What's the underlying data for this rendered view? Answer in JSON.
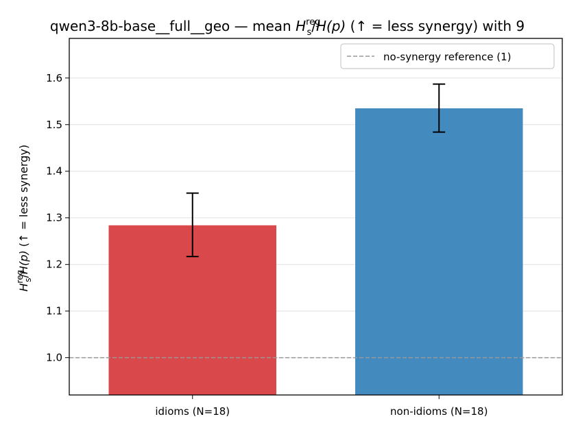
{
  "chart_data": {
    "type": "bar",
    "title": {
      "prefix": "qwen3-8b-base__full__geo — mean ",
      "math_base": "H",
      "math_sub": "s",
      "math_sup": "reg",
      "mid": "/",
      "math_p": "H(p)",
      "suffix": "  (↑ = less synergy) with 9"
    },
    "ylabel": {
      "math_base": "H",
      "math_sub": "s",
      "math_sup": "reg",
      "mid": "/",
      "math_p": "H(p)",
      "suffix": "  (↑ = less synergy)"
    },
    "categories": [
      "idioms (N=18)",
      "non-idioms (N=18)"
    ],
    "values": [
      1.284,
      1.535
    ],
    "errors_low": [
      1.217,
      1.484
    ],
    "errors_high": [
      1.353,
      1.587
    ],
    "colors": [
      "#d9484a",
      "#438bbf"
    ],
    "reference": {
      "value": 1.0,
      "label": "no-synergy reference (1)",
      "color": "#999999"
    },
    "ylim": [
      0.92,
      1.685
    ],
    "yticks": [
      "1.0",
      "1.1",
      "1.2",
      "1.3",
      "1.4",
      "1.5",
      "1.6"
    ],
    "grid": true,
    "legend_position": "top-right"
  }
}
